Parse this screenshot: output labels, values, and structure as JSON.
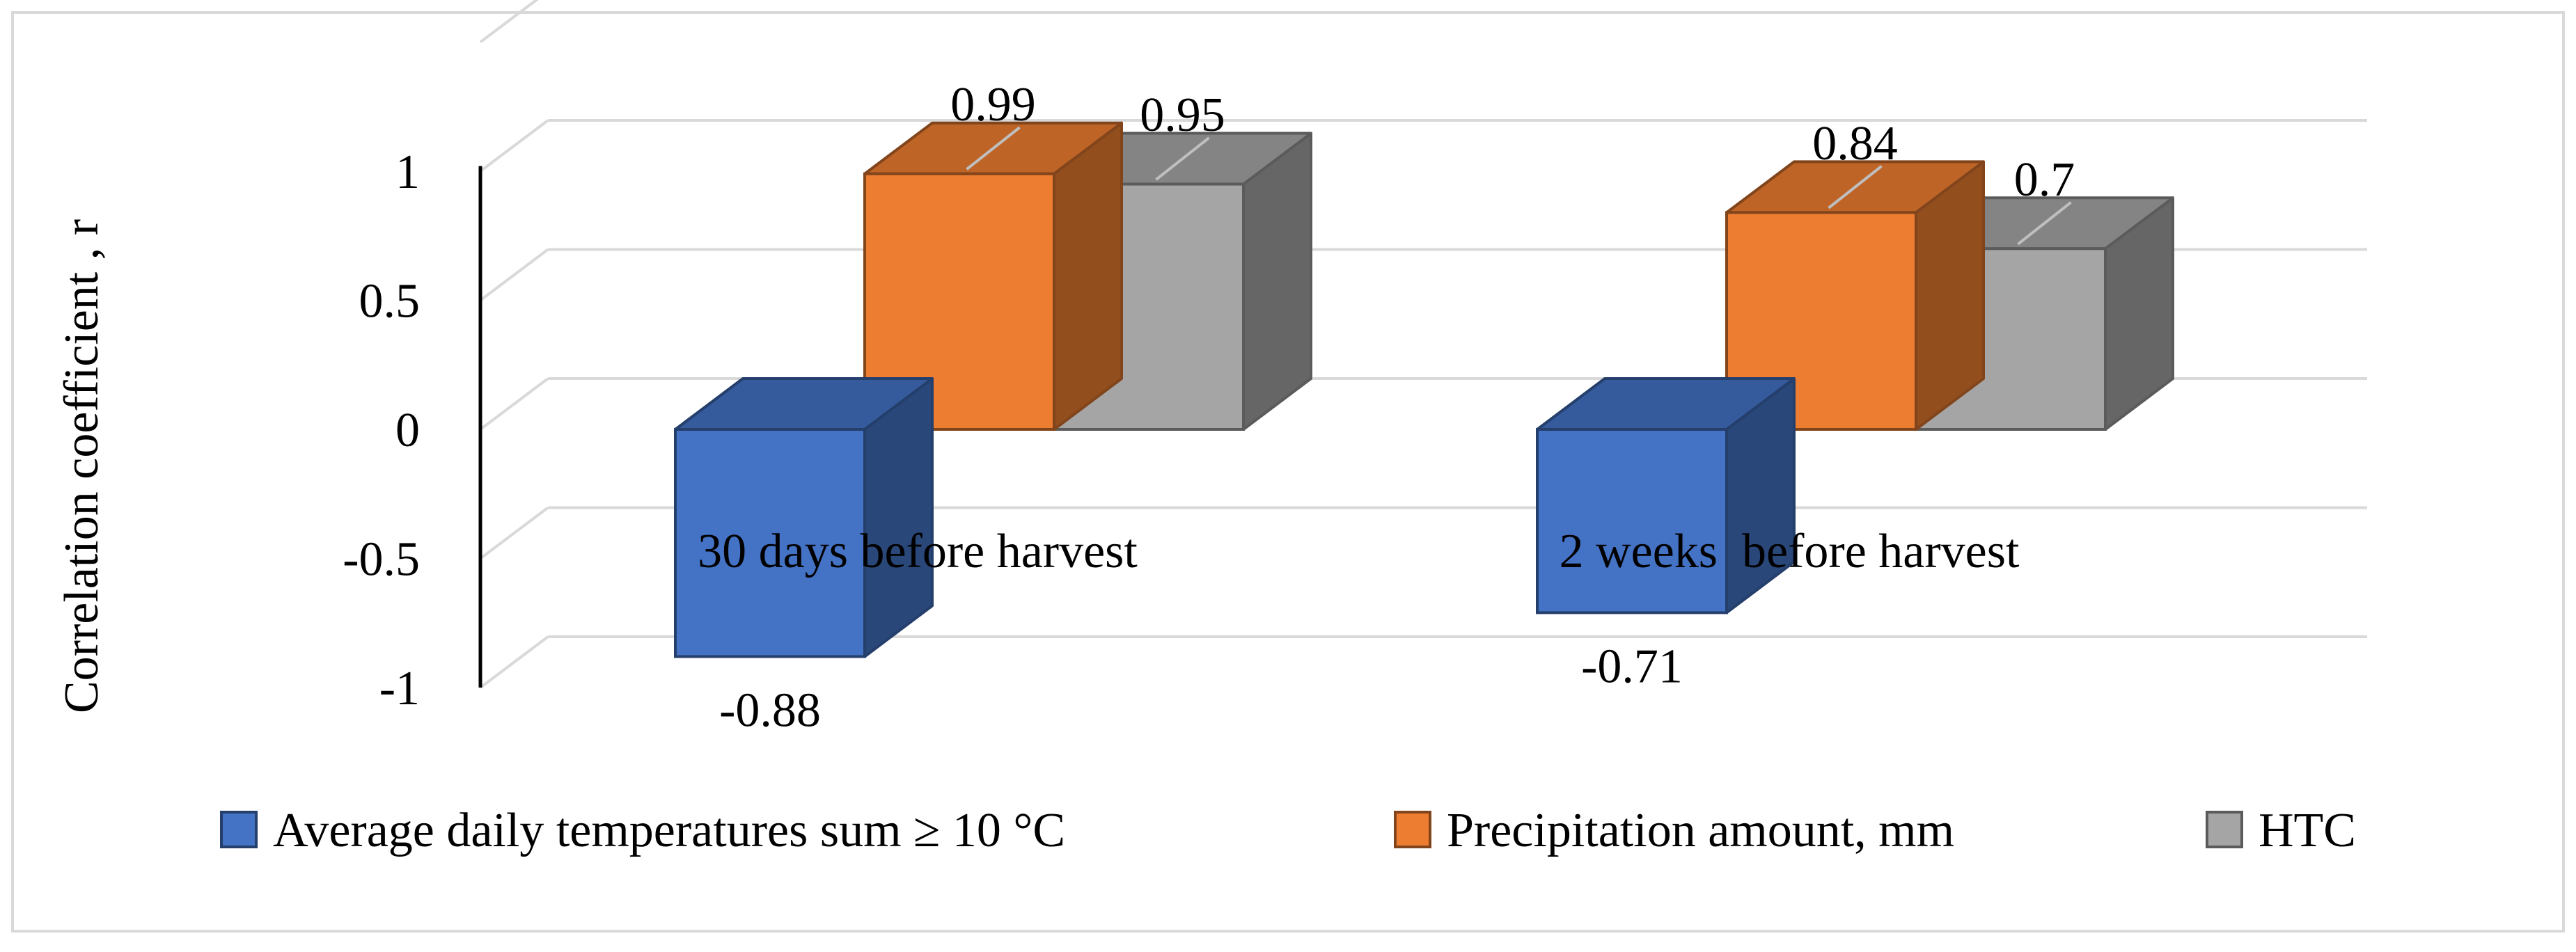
{
  "chart_data": {
    "type": "bar",
    "categories": [
      "30 days before harvest",
      "2 weeks  before harvest"
    ],
    "series": [
      {
        "name": "Average daily temperatures sum ≥ 10 °C",
        "values": [
          -0.88,
          -0.71
        ],
        "color": "#4472C4"
      },
      {
        "name": "Precipitation amount, mm",
        "values": [
          0.99,
          0.84
        ],
        "color": "#ED7D31"
      },
      {
        "name": "HTC",
        "values": [
          0.95,
          0.7
        ],
        "color": "#A5A5A5"
      }
    ],
    "data_labels": [
      [
        "-0.88",
        "-0.71"
      ],
      [
        "0.99",
        "0.84"
      ],
      [
        "0.95",
        "0.7"
      ]
    ],
    "ylabel": "Correlation coefficient , r",
    "yticks": [
      "1",
      "0.5",
      "0",
      "-0.5",
      "-1"
    ],
    "ylim": [
      -1,
      1.5
    ],
    "grid": true,
    "legend_position": "bottom",
    "style": "3d-clustered-column"
  }
}
